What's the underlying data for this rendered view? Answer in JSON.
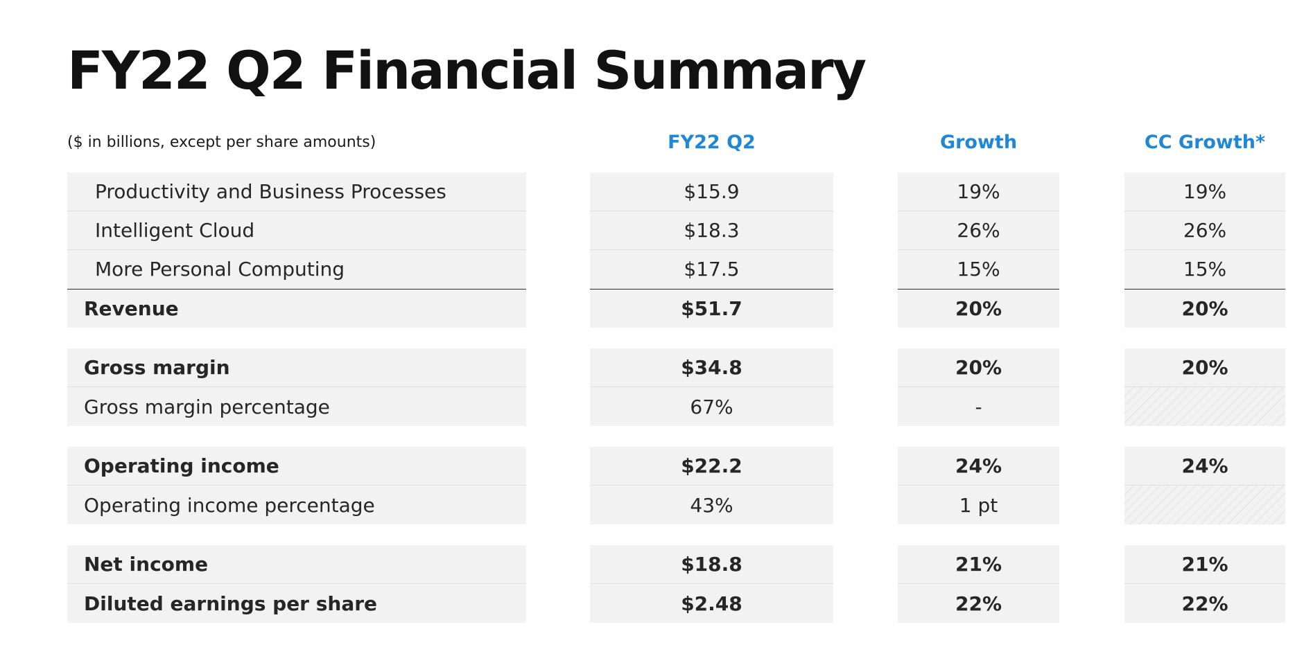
{
  "title": "FY22 Q2 Financial Summary",
  "subtitle": "($ in billions, except per share amounts)",
  "columns": {
    "value": "FY22 Q2",
    "growth": "Growth",
    "cc_growth": "CC Growth*"
  },
  "rows": [
    {
      "label": "Productivity and Business Processes",
      "value": "$15.9",
      "growth": "19%",
      "cc_growth": "19%"
    },
    {
      "label": "Intelligent Cloud",
      "value": "$18.3",
      "growth": "26%",
      "cc_growth": "26%"
    },
    {
      "label": "More Personal Computing",
      "value": "$17.5",
      "growth": "15%",
      "cc_growth": "15%"
    },
    {
      "label": "Revenue",
      "value": "$51.7",
      "growth": "20%",
      "cc_growth": "20%"
    },
    {
      "label": "Gross margin",
      "value": "$34.8",
      "growth": "20%",
      "cc_growth": "20%"
    },
    {
      "label": "Gross margin percentage",
      "value": "67%",
      "growth": "-",
      "cc_growth": ""
    },
    {
      "label": "Operating income",
      "value": "$22.2",
      "growth": "24%",
      "cc_growth": "24%"
    },
    {
      "label": "Operating income percentage",
      "value": "43%",
      "growth": "1 pt",
      "cc_growth": ""
    },
    {
      "label": "Net income",
      "value": "$18.8",
      "growth": "21%",
      "cc_growth": "21%"
    },
    {
      "label": "Diluted earnings per share",
      "value": "$2.48",
      "growth": "22%",
      "cc_growth": "22%"
    }
  ]
}
